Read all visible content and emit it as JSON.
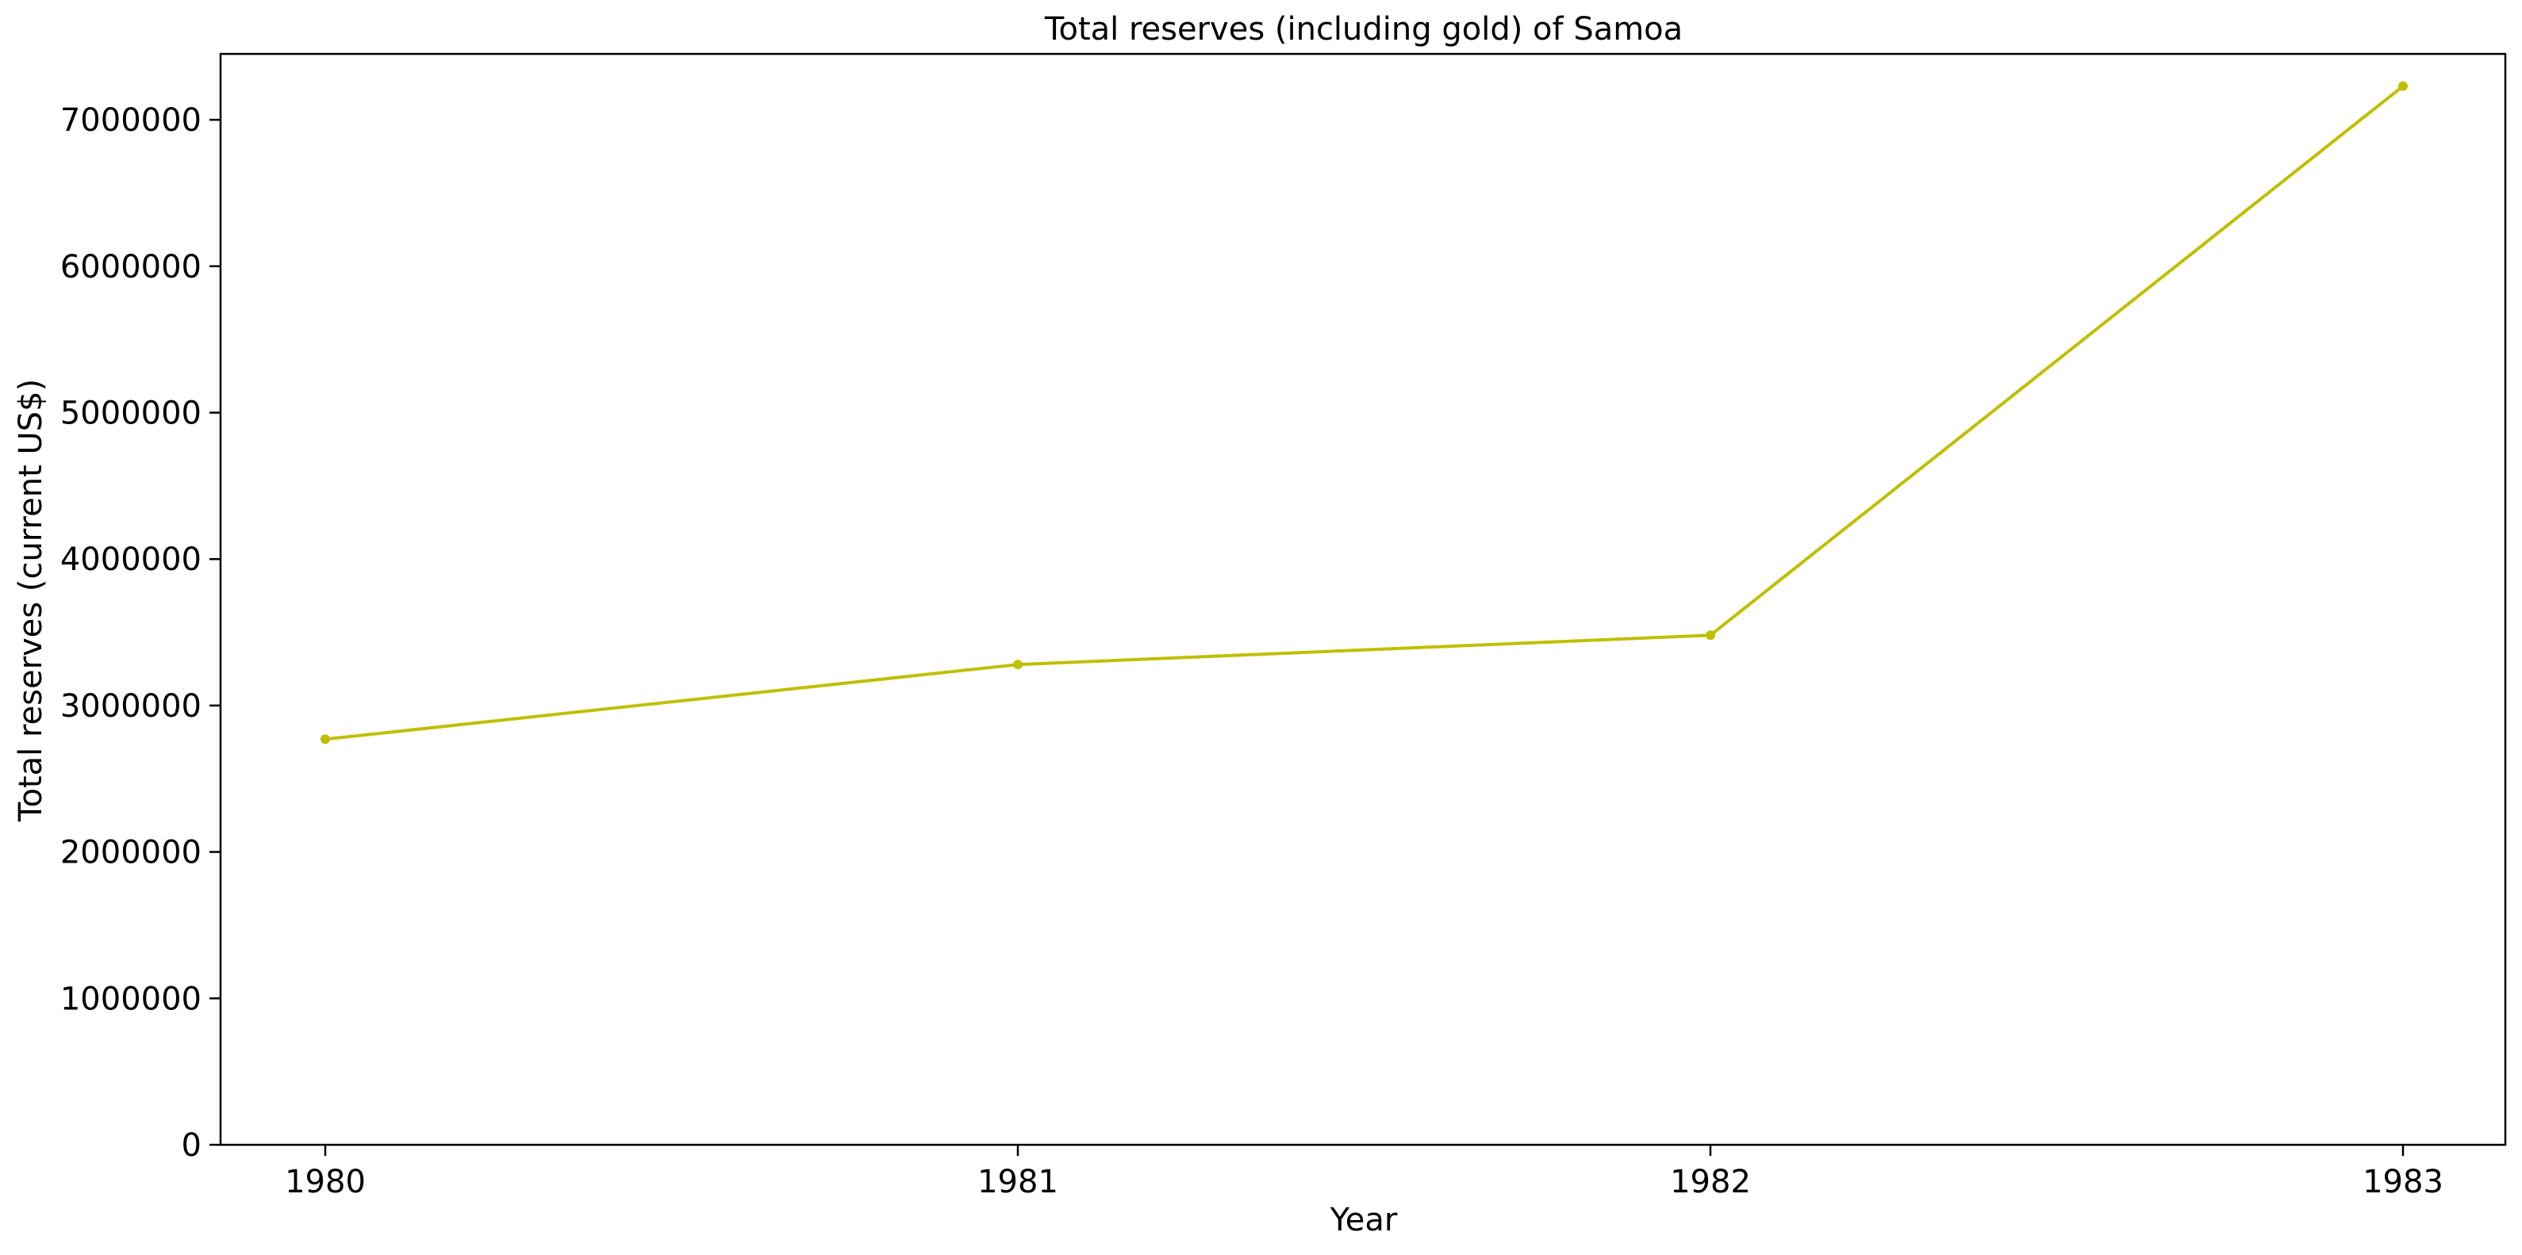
{
  "chart_data": {
    "type": "line",
    "title": "Total reserves (including gold) of Samoa",
    "xlabel": "Year",
    "ylabel": "Total reserves (current US$)",
    "categories": [
      "1980",
      "1981",
      "1982",
      "1983"
    ],
    "series": [
      {
        "values": [
          2770000,
          3280000,
          3480000,
          7230000
        ],
        "color": "#bfbf00",
        "marker": "circle"
      }
    ],
    "ylim": [
      0,
      7450000
    ],
    "yticks": [
      0,
      1000000,
      2000000,
      3000000,
      4000000,
      5000000,
      6000000,
      7000000
    ],
    "ytick_labels": [
      "0",
      "1000000",
      "2000000",
      "3000000",
      "4000000",
      "5000000",
      "6000000",
      "7000000"
    ],
    "grid": false,
    "legend": "none"
  }
}
